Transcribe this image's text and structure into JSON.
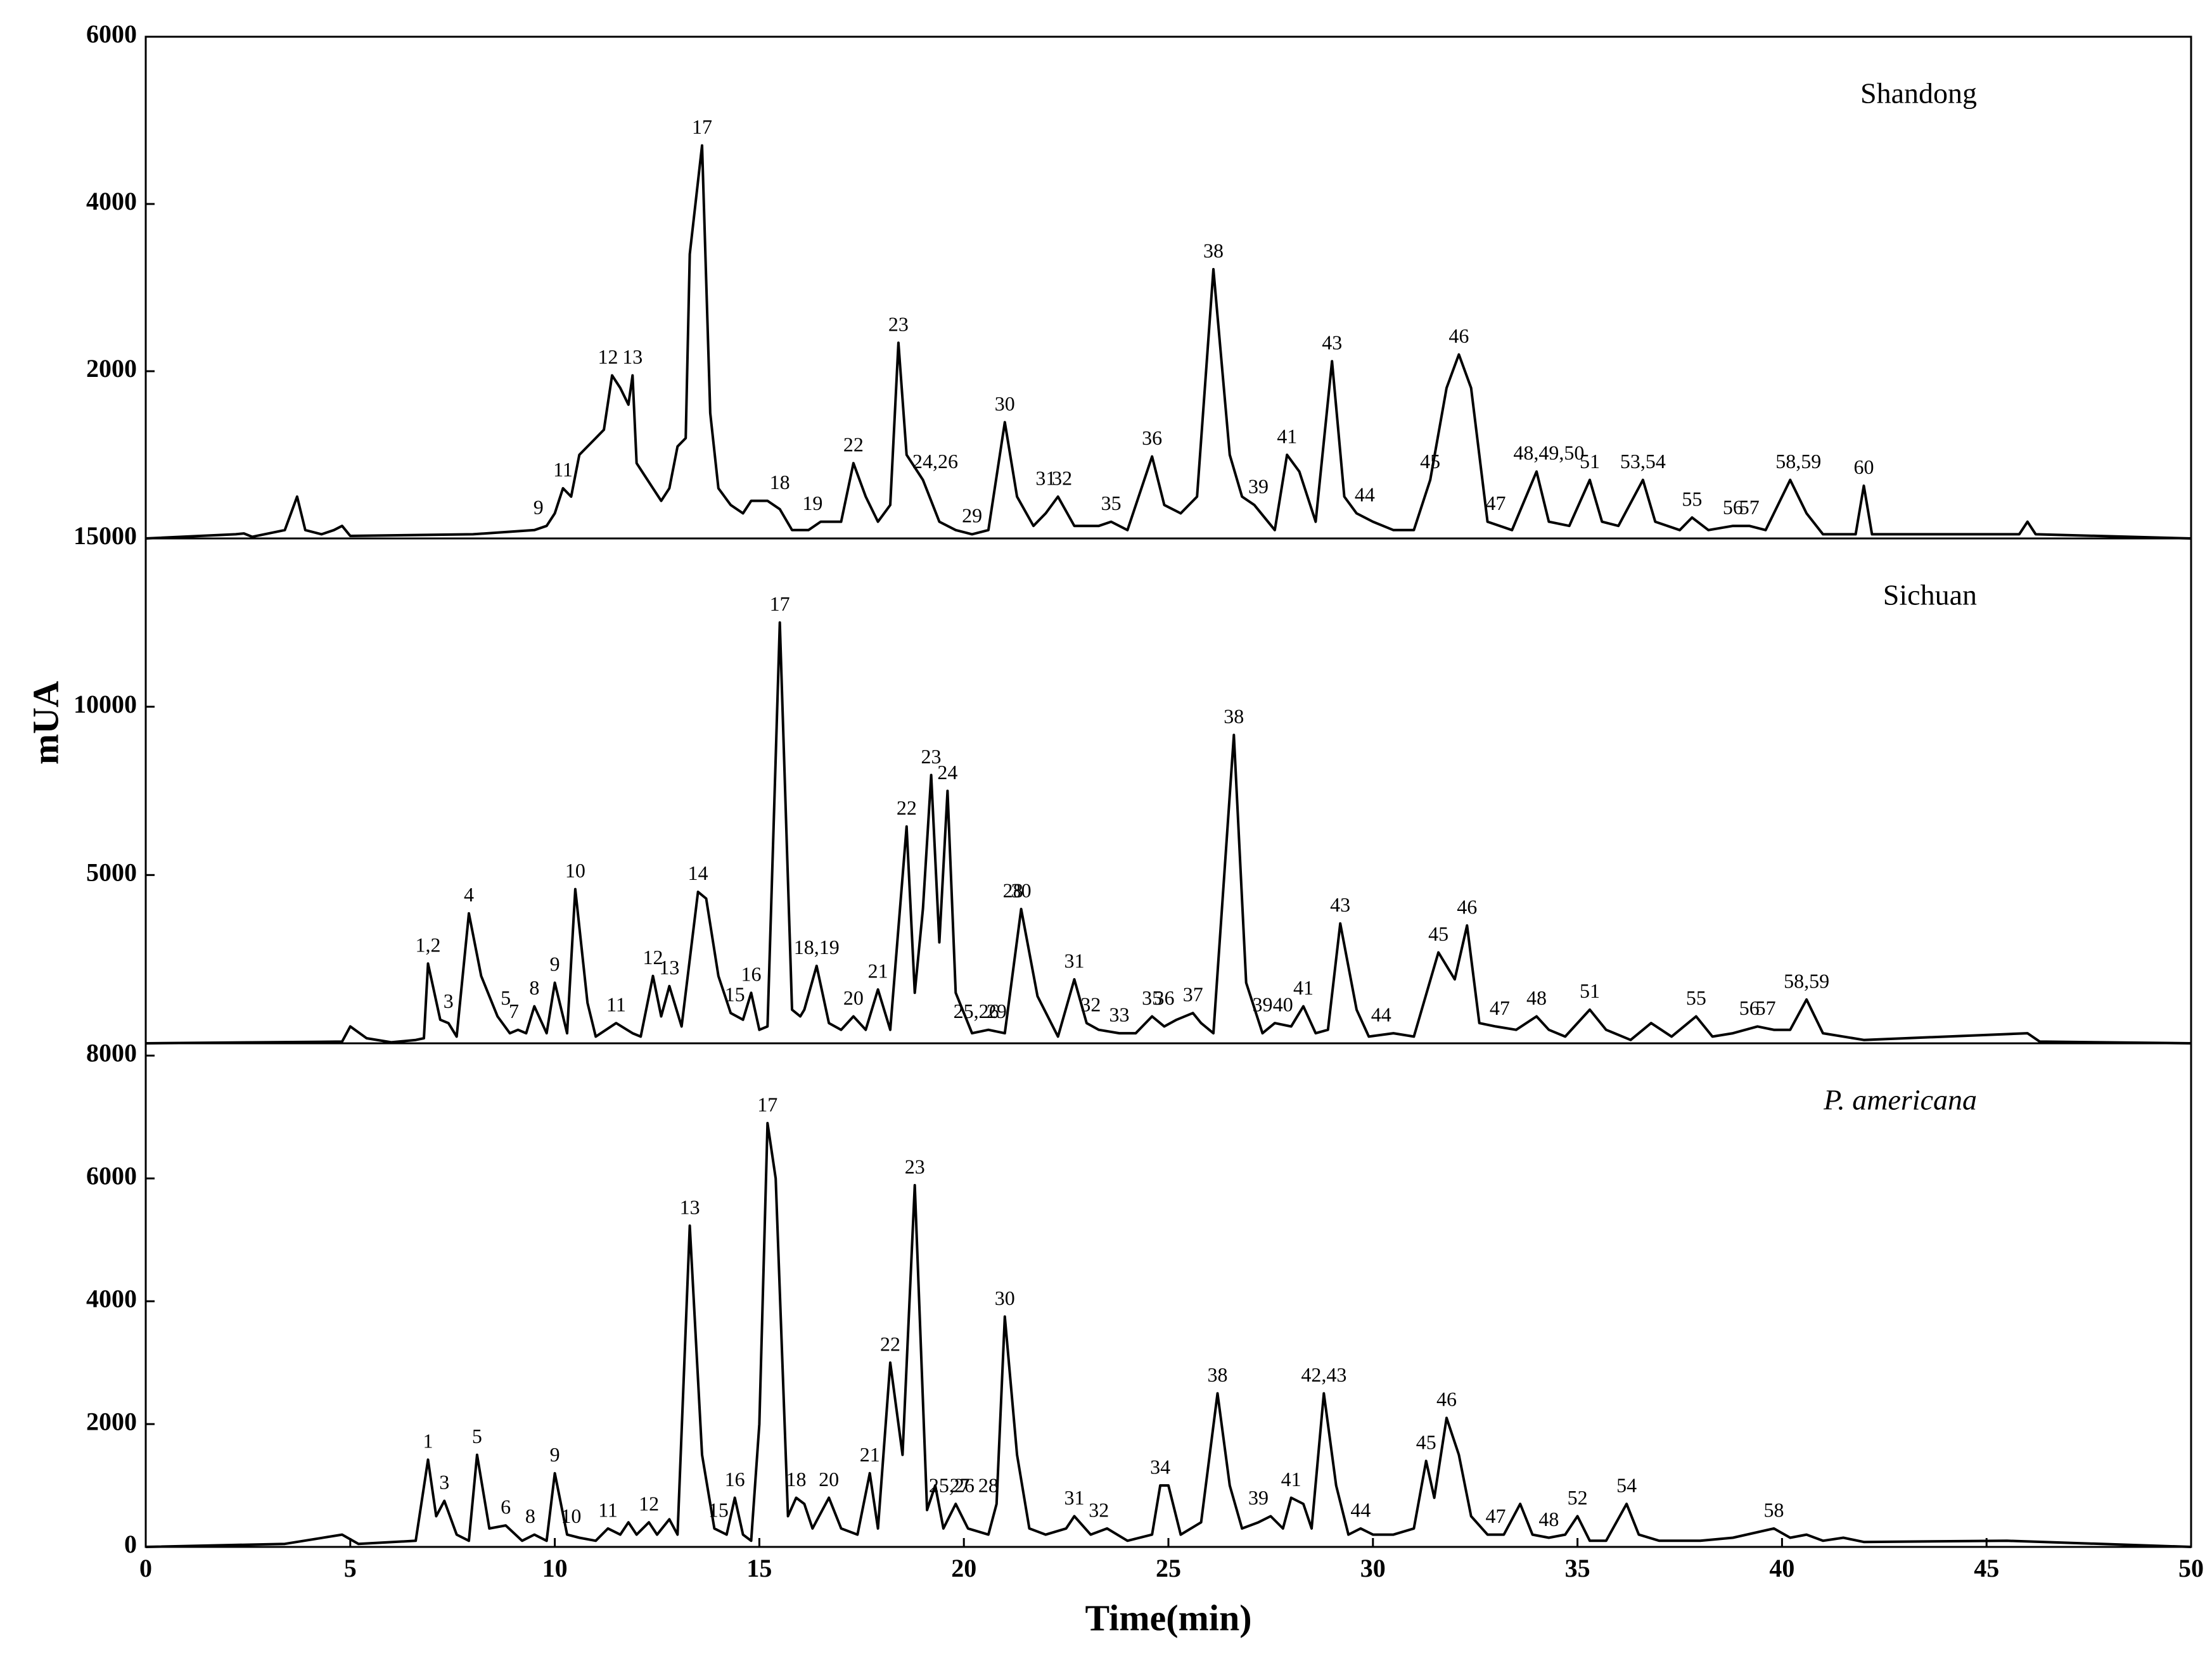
{
  "chart_data": [
    {
      "type": "line",
      "title": "Shandong",
      "color": "#000000",
      "ylim": [
        0,
        6000
      ],
      "yticks": [
        2000,
        4000,
        6000
      ],
      "x": [
        0,
        2.2,
        2.4,
        2.6,
        3.4,
        3.7,
        3.9,
        4.3,
        4.6,
        4.8,
        5,
        8,
        9.5,
        9.8,
        10,
        10.2,
        10.4,
        10.6,
        11,
        11.2,
        11.4,
        11.6,
        11.8,
        11.9,
        12,
        12.2,
        12.4,
        12.6,
        12.8,
        13,
        13.2,
        13.3,
        13.6,
        13.8,
        14,
        14.3,
        14.6,
        14.8,
        15.2,
        15.5,
        15.8,
        16.2,
        16.5,
        17,
        17.3,
        17.6,
        17.9,
        18.2,
        18.4,
        18.6,
        19,
        19.4,
        19.8,
        20.2,
        20.6,
        21,
        21.3,
        21.7,
        22,
        22.3,
        22.7,
        23.3,
        23.6,
        24,
        24.6,
        24.9,
        25.3,
        25.7,
        26.1,
        26.5,
        26.8,
        27.1,
        27.6,
        27.9,
        28.2,
        28.6,
        29,
        29.3,
        29.6,
        30,
        30.5,
        31,
        31.4,
        31.8,
        32.1,
        32.4,
        32.8,
        33.4,
        34,
        34.3,
        34.8,
        35.3,
        35.6,
        36,
        36.6,
        36.9,
        37.5,
        37.8,
        38.2,
        38.8,
        39.2,
        39.6,
        40.2,
        40.6,
        41,
        41.8,
        42,
        42.2,
        45.8,
        46,
        46.2,
        50
      ],
      "values": [
        0,
        50,
        60,
        20,
        100,
        500,
        100,
        50,
        100,
        150,
        30,
        50,
        100,
        150,
        300,
        600,
        500,
        1000,
        1200,
        1300,
        1950,
        1800,
        1600,
        1950,
        900,
        750,
        600,
        450,
        600,
        1100,
        1200,
        3400,
        4700,
        1500,
        600,
        400,
        300,
        450,
        450,
        350,
        100,
        100,
        200,
        200,
        900,
        500,
        200,
        400,
        2340,
        1000,
        700,
        200,
        100,
        50,
        100,
        1390,
        500,
        150,
        300,
        500,
        150,
        150,
        200,
        100,
        980,
        400,
        300,
        500,
        3220,
        1000,
        500,
        400,
        100,
        1000,
        800,
        200,
        2120,
        500,
        300,
        200,
        100,
        100,
        700,
        1800,
        2200,
        1800,
        200,
        100,
        800,
        200,
        150,
        700,
        200,
        150,
        700,
        200,
        100,
        250,
        100,
        150,
        150,
        100,
        700,
        300,
        50,
        50,
        630,
        50,
        50,
        200,
        50,
        0
      ],
      "annotations": [
        {
          "text": "9",
          "x": 9.6
        },
        {
          "text": "11",
          "x": 10.2
        },
        {
          "text": "12",
          "x": 11.3
        },
        {
          "text": "13",
          "x": 11.9
        },
        {
          "text": "17",
          "x": 13.6
        },
        {
          "text": "18",
          "x": 15.5
        },
        {
          "text": "19",
          "x": 16.3
        },
        {
          "text": "22",
          "x": 17.3
        },
        {
          "text": "23",
          "x": 18.4
        },
        {
          "text": "24,26",
          "x": 19.3
        },
        {
          "text": "29",
          "x": 20.2
        },
        {
          "text": "30",
          "x": 21
        },
        {
          "text": "31",
          "x": 22
        },
        {
          "text": "32",
          "x": 22.4
        },
        {
          "text": "35",
          "x": 23.6
        },
        {
          "text": "36",
          "x": 24.6
        },
        {
          "text": "38",
          "x": 26.1
        },
        {
          "text": "39",
          "x": 27.2
        },
        {
          "text": "41",
          "x": 27.9
        },
        {
          "text": "43",
          "x": 29
        },
        {
          "text": "44",
          "x": 29.8
        },
        {
          "text": "45",
          "x": 31.4
        },
        {
          "text": "46",
          "x": 32.1
        },
        {
          "text": "47",
          "x": 33
        },
        {
          "text": "48,49,50",
          "x": 34.3
        },
        {
          "text": "51",
          "x": 35.3
        },
        {
          "text": "53,54",
          "x": 36.6
        },
        {
          "text": "55",
          "x": 37.8
        },
        {
          "text": "56",
          "x": 38.8
        },
        {
          "text": "57",
          "x": 39.2
        },
        {
          "text": "58,59",
          "x": 40.4
        },
        {
          "text": "60",
          "x": 42
        }
      ]
    },
    {
      "type": "line",
      "title": "Sichuan",
      "ylabel": "mUA",
      "color": "#000000",
      "ylim": [
        0,
        15000
      ],
      "yticks": [
        5000,
        10000,
        15000
      ],
      "x": [
        0,
        4.8,
        5,
        5.4,
        6,
        6.6,
        6.8,
        6.9,
        7.2,
        7.4,
        7.6,
        7.9,
        8.2,
        8.6,
        8.9,
        9.1,
        9.3,
        9.5,
        9.8,
        10,
        10.3,
        10.5,
        10.8,
        11,
        11.5,
        11.9,
        12.1,
        12.4,
        12.6,
        12.8,
        13.1,
        13.5,
        13.7,
        14,
        14.3,
        14.6,
        14.8,
        15,
        15.2,
        15.5,
        15.8,
        16,
        16.1,
        16.4,
        16.7,
        17,
        17.3,
        17.6,
        17.9,
        18.2,
        18.6,
        18.8,
        19,
        19.2,
        19.4,
        19.6,
        19.8,
        20.2,
        20.6,
        21,
        21.4,
        21.8,
        22.3,
        22.7,
        23,
        23.3,
        23.8,
        24.2,
        24.6,
        24.9,
        25.2,
        25.6,
        25.8,
        26.1,
        26.6,
        26.9,
        27.3,
        27.6,
        28,
        28.3,
        28.6,
        28.9,
        29.2,
        29.6,
        29.9,
        30.5,
        31,
        31.6,
        32,
        32.3,
        32.6,
        33,
        33.5,
        34,
        34.3,
        34.7,
        35.3,
        35.7,
        36.3,
        36.8,
        37.3,
        37.9,
        38.3,
        38.8,
        39.4,
        39.8,
        40.2,
        40.6,
        41,
        42,
        46,
        46.3,
        50
      ],
      "values": [
        0,
        50,
        500,
        150,
        30,
        100,
        150,
        2370,
        700,
        600,
        200,
        3860,
        2000,
        800,
        300,
        400,
        300,
        1100,
        300,
        1800,
        300,
        4580,
        1200,
        200,
        600,
        300,
        200,
        2000,
        800,
        1700,
        500,
        4500,
        4300,
        2000,
        900,
        700,
        1500,
        400,
        500,
        12500,
        1000,
        800,
        1000,
        2300,
        600,
        400,
        800,
        400,
        1600,
        400,
        6440,
        1500,
        4000,
        7970,
        3000,
        7500,
        1500,
        300,
        400,
        300,
        3990,
        1400,
        200,
        1900,
        600,
        400,
        300,
        300,
        800,
        500,
        700,
        900,
        600,
        300,
        9160,
        1800,
        300,
        600,
        500,
        1100,
        300,
        400,
        3560,
        1000,
        200,
        300,
        200,
        2700,
        1900,
        3500,
        600,
        500,
        400,
        800,
        400,
        200,
        1000,
        400,
        100,
        600,
        200,
        800,
        200,
        300,
        500,
        400,
        400,
        1300,
        300,
        100,
        300,
        50,
        0
      ],
      "annotations": [
        {
          "text": "1,2",
          "x": 6.9
        },
        {
          "text": "3",
          "x": 7.4
        },
        {
          "text": "4",
          "x": 7.9
        },
        {
          "text": "5",
          "x": 8.8
        },
        {
          "text": "7",
          "x": 9
        },
        {
          "text": "8",
          "x": 9.5
        },
        {
          "text": "9",
          "x": 10
        },
        {
          "text": "10",
          "x": 10.5
        },
        {
          "text": "11",
          "x": 11.5
        },
        {
          "text": "12",
          "x": 12.4
        },
        {
          "text": "13",
          "x": 12.8
        },
        {
          "text": "14",
          "x": 13.5
        },
        {
          "text": "15",
          "x": 14.4
        },
        {
          "text": "16",
          "x": 14.8
        },
        {
          "text": "17",
          "x": 15.5
        },
        {
          "text": "18,19",
          "x": 16.4
        },
        {
          "text": "20",
          "x": 17.3
        },
        {
          "text": "21",
          "x": 17.9
        },
        {
          "text": "22",
          "x": 18.6
        },
        {
          "text": "23",
          "x": 19.2
        },
        {
          "text": "24",
          "x": 19.6
        },
        {
          "text": "25,26",
          "x": 20.3
        },
        {
          "text": "28",
          "x": 21.2
        },
        {
          "text": "29",
          "x": 20.8
        },
        {
          "text": "30",
          "x": 21.4
        },
        {
          "text": "31",
          "x": 22.7
        },
        {
          "text": "32",
          "x": 23.1
        },
        {
          "text": "33",
          "x": 23.8
        },
        {
          "text": "35",
          "x": 24.6
        },
        {
          "text": "36",
          "x": 24.9
        },
        {
          "text": "37",
          "x": 25.6
        },
        {
          "text": "38",
          "x": 26.6
        },
        {
          "text": "39",
          "x": 27.3
        },
        {
          "text": "40",
          "x": 27.8
        },
        {
          "text": "41",
          "x": 28.3
        },
        {
          "text": "43",
          "x": 29.2
        },
        {
          "text": "44",
          "x": 30.2
        },
        {
          "text": "45",
          "x": 31.6
        },
        {
          "text": "46",
          "x": 32.3
        },
        {
          "text": "47",
          "x": 33.1
        },
        {
          "text": "48",
          "x": 34
        },
        {
          "text": "51",
          "x": 35.3
        },
        {
          "text": "55",
          "x": 37.9
        },
        {
          "text": "56",
          "x": 39.2
        },
        {
          "text": "57",
          "x": 39.6
        },
        {
          "text": "58,59",
          "x": 40.6
        }
      ]
    },
    {
      "type": "line",
      "title": "P. americana",
      "xlabel": "Time(min)",
      "color": "#000000",
      "xlim": [
        0,
        50
      ],
      "xticks": [
        0,
        5,
        10,
        15,
        20,
        25,
        30,
        35,
        40,
        45,
        50
      ],
      "ylim": [
        0,
        8200
      ],
      "yticks": [
        0,
        2000,
        4000,
        6000,
        8000
      ],
      "x": [
        0,
        3.4,
        4.8,
        5.2,
        6.6,
        6.9,
        7.1,
        7.3,
        7.6,
        7.9,
        8.1,
        8.4,
        8.8,
        9.2,
        9.5,
        9.8,
        10,
        10.3,
        10.6,
        11,
        11.3,
        11.6,
        11.8,
        12,
        12.3,
        12.5,
        12.8,
        13,
        13.3,
        13.6,
        13.9,
        14.2,
        14.4,
        14.6,
        14.8,
        15,
        15.2,
        15.4,
        15.7,
        15.9,
        16.1,
        16.3,
        16.7,
        17,
        17.4,
        17.7,
        17.9,
        18.2,
        18.5,
        18.8,
        19.1,
        19.3,
        19.5,
        19.8,
        20.1,
        20.6,
        20.8,
        21,
        21.3,
        21.6,
        22,
        22.5,
        22.7,
        23.1,
        23.5,
        24,
        24.6,
        24.8,
        25,
        25.3,
        25.8,
        26.2,
        26.5,
        26.8,
        27.2,
        27.5,
        27.8,
        28,
        28.3,
        28.5,
        28.8,
        29.1,
        29.4,
        29.7,
        30,
        30.5,
        31,
        31.3,
        31.5,
        31.8,
        32.1,
        32.4,
        32.8,
        33.2,
        33.6,
        33.9,
        34.3,
        34.7,
        35,
        35.3,
        35.7,
        36.2,
        36.5,
        37,
        38,
        38.8,
        39.8,
        40.2,
        40.6,
        41,
        41.5,
        42,
        45.5,
        50
      ],
      "values": [
        0,
        50,
        200,
        50,
        100,
        1420,
        500,
        750,
        200,
        100,
        1500,
        300,
        350,
        100,
        200,
        100,
        1200,
        200,
        150,
        100,
        300,
        200,
        400,
        200,
        400,
        200,
        450,
        200,
        5230,
        1500,
        300,
        200,
        800,
        200,
        100,
        2000,
        6900,
        6000,
        500,
        800,
        700,
        300,
        800,
        300,
        200,
        1200,
        300,
        3000,
        1500,
        5890,
        600,
        1000,
        300,
        700,
        300,
        200,
        700,
        3750,
        1500,
        300,
        200,
        300,
        500,
        200,
        300,
        100,
        200,
        1000,
        1000,
        200,
        400,
        2500,
        1000,
        300,
        400,
        500,
        300,
        800,
        700,
        300,
        2500,
        1000,
        200,
        300,
        200,
        200,
        300,
        1400,
        800,
        2100,
        1500,
        500,
        200,
        200,
        700,
        200,
        150,
        200,
        500,
        100,
        100,
        700,
        200,
        100,
        100,
        150,
        300,
        150,
        200,
        100,
        150,
        80,
        100,
        0
      ],
      "annotations": [
        {
          "text": "1",
          "x": 6.9
        },
        {
          "text": "3",
          "x": 7.3
        },
        {
          "text": "5",
          "x": 8.1
        },
        {
          "text": "6",
          "x": 8.8
        },
        {
          "text": "8",
          "x": 9.4
        },
        {
          "text": "9",
          "x": 10
        },
        {
          "text": "10",
          "x": 10.4
        },
        {
          "text": "11",
          "x": 11.3
        },
        {
          "text": "12",
          "x": 12.3
        },
        {
          "text": "13",
          "x": 13.3
        },
        {
          "text": "15",
          "x": 14
        },
        {
          "text": "16",
          "x": 14.4
        },
        {
          "text": "17",
          "x": 15.2
        },
        {
          "text": "18",
          "x": 15.9
        },
        {
          "text": "20",
          "x": 16.7
        },
        {
          "text": "21",
          "x": 17.7
        },
        {
          "text": "22",
          "x": 18.2
        },
        {
          "text": "23",
          "x": 18.8
        },
        {
          "text": "25,26",
          "x": 19.7
        },
        {
          "text": "27",
          "x": 19.9
        },
        {
          "text": "28",
          "x": 20.6
        },
        {
          "text": "30",
          "x": 21
        },
        {
          "text": "31",
          "x": 22.7
        },
        {
          "text": "32",
          "x": 23.3
        },
        {
          "text": "34",
          "x": 24.8
        },
        {
          "text": "38",
          "x": 26.2
        },
        {
          "text": "39",
          "x": 27.2
        },
        {
          "text": "41",
          "x": 28
        },
        {
          "text": "42,43",
          "x": 28.8
        },
        {
          "text": "44",
          "x": 29.7
        },
        {
          "text": "45",
          "x": 31.3
        },
        {
          "text": "46",
          "x": 31.8
        },
        {
          "text": "47",
          "x": 33
        },
        {
          "text": "48",
          "x": 34.3
        },
        {
          "text": "52",
          "x": 35
        },
        {
          "text": "54",
          "x": 36.2
        },
        {
          "text": "58",
          "x": 39.8
        }
      ]
    }
  ]
}
